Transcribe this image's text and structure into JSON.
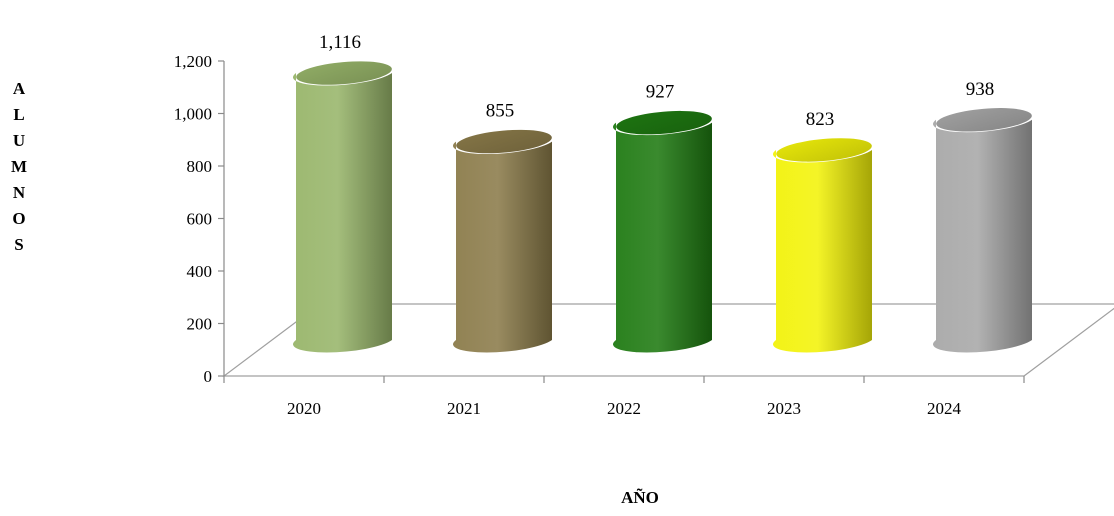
{
  "chart_data": {
    "type": "bar",
    "style": "3d-cylinder",
    "categories": [
      "2020",
      "2021",
      "2022",
      "2023",
      "2024"
    ],
    "values": [
      1116,
      855,
      927,
      823,
      938
    ],
    "data_labels": [
      "1,116",
      "855",
      "927",
      "823",
      "938"
    ],
    "colors": [
      "#98b56a",
      "#8b7b4a",
      "#1f7a12",
      "#f2f20a",
      "#a8a8a8"
    ],
    "ylabel": "ALUMNOS",
    "ylabel_letters": [
      "A",
      "L",
      "U",
      "M",
      "N",
      "O",
      "S"
    ],
    "xlabel": "AÑO",
    "ylim": [
      0,
      1200
    ],
    "yticks": [
      0,
      200,
      400,
      600,
      800,
      1000,
      1200
    ],
    "ytick_labels": [
      "0",
      "200",
      "400",
      "600",
      "800",
      "1,000",
      "1,200"
    ],
    "grid": false,
    "legend": false
  }
}
